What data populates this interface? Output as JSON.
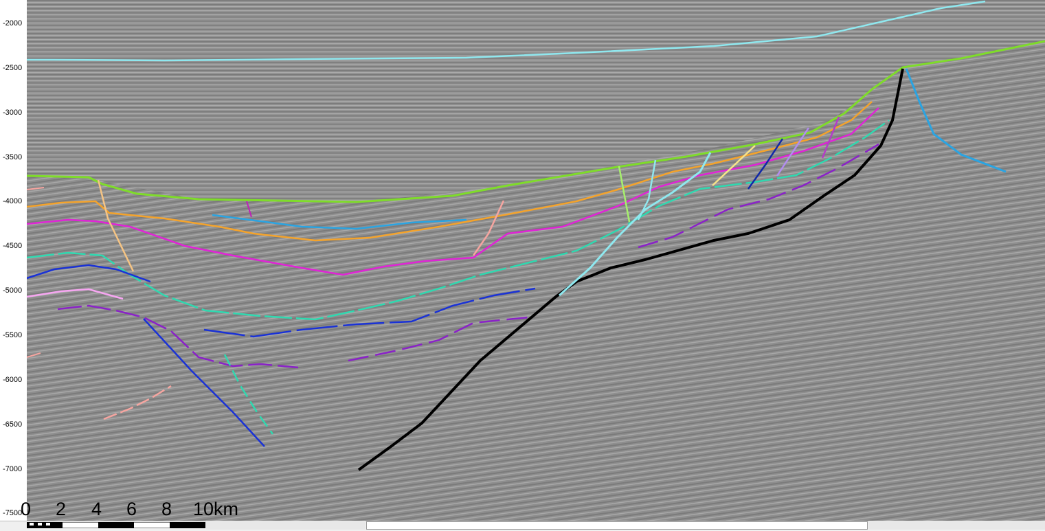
{
  "axis": {
    "ticks": [
      "-2000",
      "-2500",
      "-3000",
      "-3500",
      "-4000",
      "-4500",
      "-5000",
      "-5500",
      "-6000",
      "-6500",
      "-7000",
      "-7500"
    ]
  },
  "scale": {
    "labels": [
      "0",
      "2",
      "4",
      "6",
      "8",
      "10km"
    ]
  },
  "colors": {
    "seafloor": "#8fe8ef",
    "top_horizon": "#7fdc2a",
    "main_fault": "#000000",
    "background": "#8c8c8c"
  }
}
